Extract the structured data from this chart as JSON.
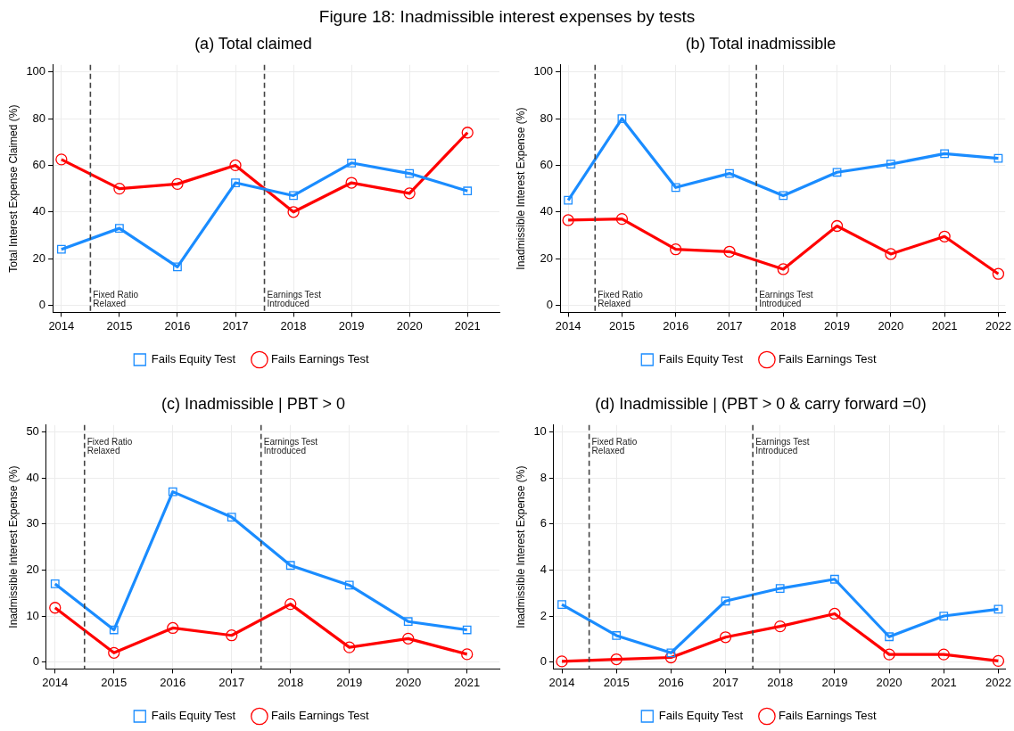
{
  "chart_data": [
    {
      "type": "line",
      "title": "Figure 18: Inadmissible interest expenses by tests",
      "subtitle": "(a) Total claimed",
      "ylabel": "Total Interest Expense Claimed (%)",
      "x": [
        2014,
        2015,
        2016,
        2017,
        2018,
        2019,
        2020,
        2021
      ],
      "xlim": [
        2013.85,
        2021.55
      ],
      "xticks": [
        2014,
        2015,
        2016,
        2017,
        2018,
        2019,
        2020,
        2021
      ],
      "ylim": [
        -3,
        103
      ],
      "yticks": [
        0,
        20,
        40,
        60,
        80,
        100
      ],
      "grid": true,
      "legend": "bottom",
      "series": [
        {
          "name": "Fails Equity Test",
          "color": "#1a8cff",
          "marker": "square",
          "values": [
            24,
            33,
            16.5,
            52.5,
            47,
            61,
            56.5,
            49
          ]
        },
        {
          "name": "Fails Earnings Test",
          "color": "#ff0000",
          "marker": "circle",
          "values": [
            62.5,
            50,
            52,
            60,
            40,
            52.5,
            48,
            74
          ]
        }
      ],
      "ref_lines": [
        {
          "axis": "x",
          "value": 2014.5,
          "label": "Fixed Ratio\nRelaxed",
          "color": "#444444",
          "line_style": "dashed"
        },
        {
          "axis": "x",
          "value": 2017.5,
          "label": "Earnings Test\nIntroduced",
          "color": "#444444",
          "line_style": "dashed"
        }
      ]
    },
    {
      "type": "line",
      "title": "(b) Total inadmissible",
      "ylabel": "Inadmissible Interest Expense (%)",
      "x": [
        2014,
        2015,
        2016,
        2017,
        2018,
        2019,
        2020,
        2021,
        2022
      ],
      "xlim": [
        2013.85,
        2022.13
      ],
      "xticks": [
        2014,
        2015,
        2016,
        2017,
        2018,
        2019,
        2020,
        2021,
        2022
      ],
      "ylim": [
        -3,
        103
      ],
      "yticks": [
        0,
        20,
        40,
        60,
        80,
        100
      ],
      "grid": true,
      "legend": "bottom",
      "series": [
        {
          "name": "Fails Equity Test",
          "color": "#1a8cff",
          "marker": "square",
          "values": [
            45,
            80,
            50.5,
            56.5,
            47,
            57,
            60.5,
            65,
            63
          ]
        },
        {
          "name": "Fails Earnings Test",
          "color": "#ff0000",
          "marker": "circle",
          "values": [
            36.5,
            37,
            24,
            23,
            15.5,
            34,
            22,
            29.5,
            13.5
          ]
        }
      ],
      "ref_lines": [
        {
          "axis": "x",
          "value": 2014.5,
          "label": "Fixed Ratio\nRelaxed",
          "color": "#444444",
          "line_style": "dashed"
        },
        {
          "axis": "x",
          "value": 2017.5,
          "label": "Earnings Test\nIntroduced",
          "color": "#444444",
          "line_style": "dashed"
        }
      ]
    },
    {
      "type": "line",
      "title": "(c) Inadmissible | PBT > 0",
      "ylabel": "Inadmissible Interest Expense (%)",
      "x": [
        2014,
        2015,
        2016,
        2017,
        2018,
        2019,
        2020,
        2021
      ],
      "xlim": [
        2013.85,
        2021.55
      ],
      "xticks": [
        2014,
        2015,
        2016,
        2017,
        2018,
        2019,
        2020,
        2021
      ],
      "ylim": [
        -1.5,
        51.5
      ],
      "yticks": [
        0,
        10,
        20,
        30,
        40,
        50
      ],
      "grid": true,
      "legend": "bottom",
      "series": [
        {
          "name": "Fails Equity Test",
          "color": "#1a8cff",
          "marker": "square",
          "values": [
            17,
            7,
            37,
            31.5,
            21,
            16.7,
            8.8,
            7
          ]
        },
        {
          "name": "Fails Earnings Test",
          "color": "#ff0000",
          "marker": "circle",
          "values": [
            11.8,
            2,
            7.4,
            5.8,
            12.6,
            3.2,
            5.1,
            1.7
          ]
        }
      ],
      "ref_lines": [
        {
          "axis": "x",
          "value": 2014.5,
          "label": "Fixed Ratio\nRelaxed",
          "color": "#444444",
          "line_style": "dashed"
        },
        {
          "axis": "x",
          "value": 2017.5,
          "label": "Earnings Test\nIntroduced",
          "color": "#444444",
          "line_style": "dashed"
        }
      ]
    },
    {
      "type": "line",
      "title": "(d) Inadmissible | (PBT > 0 & carry forward =0)",
      "ylabel": "Inadmissible Interest Expense (%)",
      "x": [
        2014,
        2015,
        2016,
        2017,
        2018,
        2019,
        2020,
        2021,
        2022
      ],
      "xlim": [
        2013.85,
        2022.13
      ],
      "xticks": [
        2014,
        2015,
        2016,
        2017,
        2018,
        2019,
        2020,
        2021,
        2022
      ],
      "ylim": [
        -0.3,
        10.3
      ],
      "yticks": [
        0,
        2,
        4,
        6,
        8,
        10
      ],
      "grid": true,
      "legend": "bottom",
      "series": [
        {
          "name": "Fails Equity Test",
          "color": "#1a8cff",
          "marker": "square",
          "values": [
            2.5,
            1.15,
            0.4,
            2.65,
            3.2,
            3.6,
            1.1,
            2.0,
            2.3
          ]
        },
        {
          "name": "Fails Earnings Test",
          "color": "#ff0000",
          "marker": "circle",
          "values": [
            0.03,
            0.12,
            0.2,
            1.08,
            1.55,
            2.1,
            0.33,
            0.33,
            0.05
          ]
        }
      ],
      "ref_lines": [
        {
          "axis": "x",
          "value": 2014.5,
          "label": "Fixed Ratio\nRelaxed",
          "color": "#444444",
          "line_style": "dashed"
        },
        {
          "axis": "x",
          "value": 2017.5,
          "label": "Earnings Test\nIntroduced",
          "color": "#444444",
          "line_style": "dashed"
        }
      ]
    }
  ]
}
